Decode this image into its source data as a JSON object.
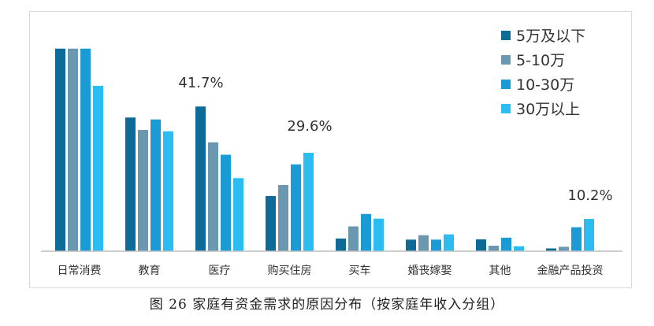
{
  "caption": "图 26 家庭有资金需求的原因分布（按家庭年收入分组）",
  "chart_data": {
    "type": "bar",
    "categories": [
      "日常消费",
      "教育",
      "医疗",
      "购买住房",
      "买车",
      "婚丧嫁娶",
      "其他",
      "金融产品投资"
    ],
    "series": [
      {
        "name": "5万及以下",
        "color": "#0e6a97",
        "values": [
          73.5,
          48.5,
          52.5,
          20.0,
          4.6,
          4.2,
          4.3,
          1.0
        ]
      },
      {
        "name": "5-10万",
        "color": "#6b98b1",
        "values": [
          73.5,
          44.0,
          39.5,
          24.0,
          9.0,
          5.8,
          2.0,
          1.6
        ]
      },
      {
        "name": "10-30万",
        "color": "#1b9bd6",
        "values": [
          73.5,
          47.8,
          35.0,
          31.5,
          13.5,
          4.2,
          4.9,
          8.7
        ]
      },
      {
        "name": "30万以上",
        "color": "#2bbdf2",
        "values": [
          60.0,
          43.5,
          26.5,
          35.7,
          11.8,
          6.1,
          1.8,
          11.7
        ]
      }
    ],
    "annotations": [
      "41.7%",
      "29.6%",
      "10.2%"
    ],
    "ylim": [
      0,
      80
    ],
    "grid": false,
    "legend_position": "top-right"
  }
}
